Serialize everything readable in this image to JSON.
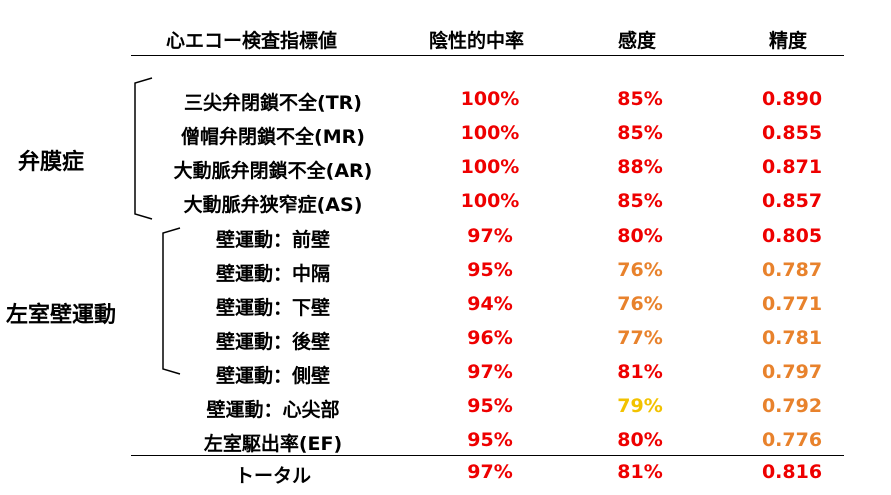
{
  "colors": {
    "red": "#ee0000",
    "orange": "#e8822c",
    "yellow": "#f2c200"
  },
  "headers": {
    "indicator": "心エコー検査指標値",
    "npv": "陰性的中率",
    "sensitivity": "感度",
    "accuracy": "精度"
  },
  "groups": {
    "valve": "弁膜症",
    "wall": "左室壁運動"
  },
  "rows": [
    {
      "name": "三尖弁閉鎖不全(TR)",
      "npv": "100%",
      "sens": "85%",
      "acc": "0.890",
      "sens_color": "red",
      "acc_color": "red"
    },
    {
      "name": "僧帽弁閉鎖不全(MR)",
      "npv": "100%",
      "sens": "85%",
      "acc": "0.855",
      "sens_color": "red",
      "acc_color": "red"
    },
    {
      "name": "大動脈弁閉鎖不全(AR)",
      "npv": "100%",
      "sens": "88%",
      "acc": "0.871",
      "sens_color": "red",
      "acc_color": "red"
    },
    {
      "name": "大動脈弁狭窄症(AS)",
      "npv": "100%",
      "sens": "85%",
      "acc": "0.857",
      "sens_color": "red",
      "acc_color": "red"
    },
    {
      "name": "壁運動：前壁",
      "npv": "97%",
      "sens": "80%",
      "acc": "0.805",
      "sens_color": "red",
      "acc_color": "red"
    },
    {
      "name": "壁運動：中隔",
      "npv": "95%",
      "sens": "76%",
      "acc": "0.787",
      "sens_color": "orange",
      "acc_color": "orange"
    },
    {
      "name": "壁運動：下壁",
      "npv": "94%",
      "sens": "76%",
      "acc": "0.771",
      "sens_color": "orange",
      "acc_color": "orange"
    },
    {
      "name": "壁運動：後壁",
      "npv": "96%",
      "sens": "77%",
      "acc": "0.781",
      "sens_color": "orange",
      "acc_color": "orange"
    },
    {
      "name": "壁運動：側壁",
      "npv": "97%",
      "sens": "81%",
      "acc": "0.797",
      "sens_color": "red",
      "acc_color": "orange"
    },
    {
      "name": "壁運動：心尖部",
      "npv": "95%",
      "sens": "79%",
      "acc": "0.792",
      "sens_color": "yellow",
      "acc_color": "orange"
    },
    {
      "name": "左室駆出率(EF)",
      "npv": "95%",
      "sens": "80%",
      "acc": "0.776",
      "sens_color": "red",
      "acc_color": "orange"
    }
  ],
  "total": {
    "name": "トータル",
    "npv": "97%",
    "sens": "81%",
    "acc": "0.816",
    "sens_color": "red",
    "acc_color": "red"
  }
}
